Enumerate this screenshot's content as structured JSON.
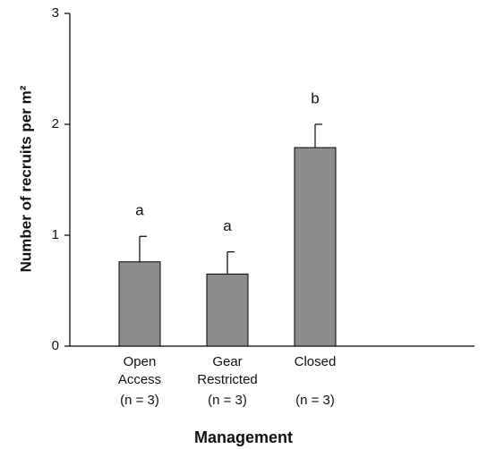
{
  "chart_data": {
    "type": "bar",
    "ylabel": "Number of recruits per m²",
    "xlabel": "Management",
    "categories": [
      [
        "Open",
        "Access"
      ],
      [
        "Gear",
        "Restricted"
      ],
      [
        "Closed"
      ]
    ],
    "sample_sizes": [
      "(n = 3)",
      "(n = 3)",
      "(n = 3)"
    ],
    "values": [
      0.76,
      0.65,
      1.79
    ],
    "errors": [
      0.23,
      0.2,
      0.21
    ],
    "annotations": [
      "a",
      "a",
      "b"
    ],
    "color": "#8c8c8c",
    "ylim": [
      0,
      3
    ],
    "yticks": [
      0,
      1,
      2,
      3
    ],
    "grid": false
  }
}
